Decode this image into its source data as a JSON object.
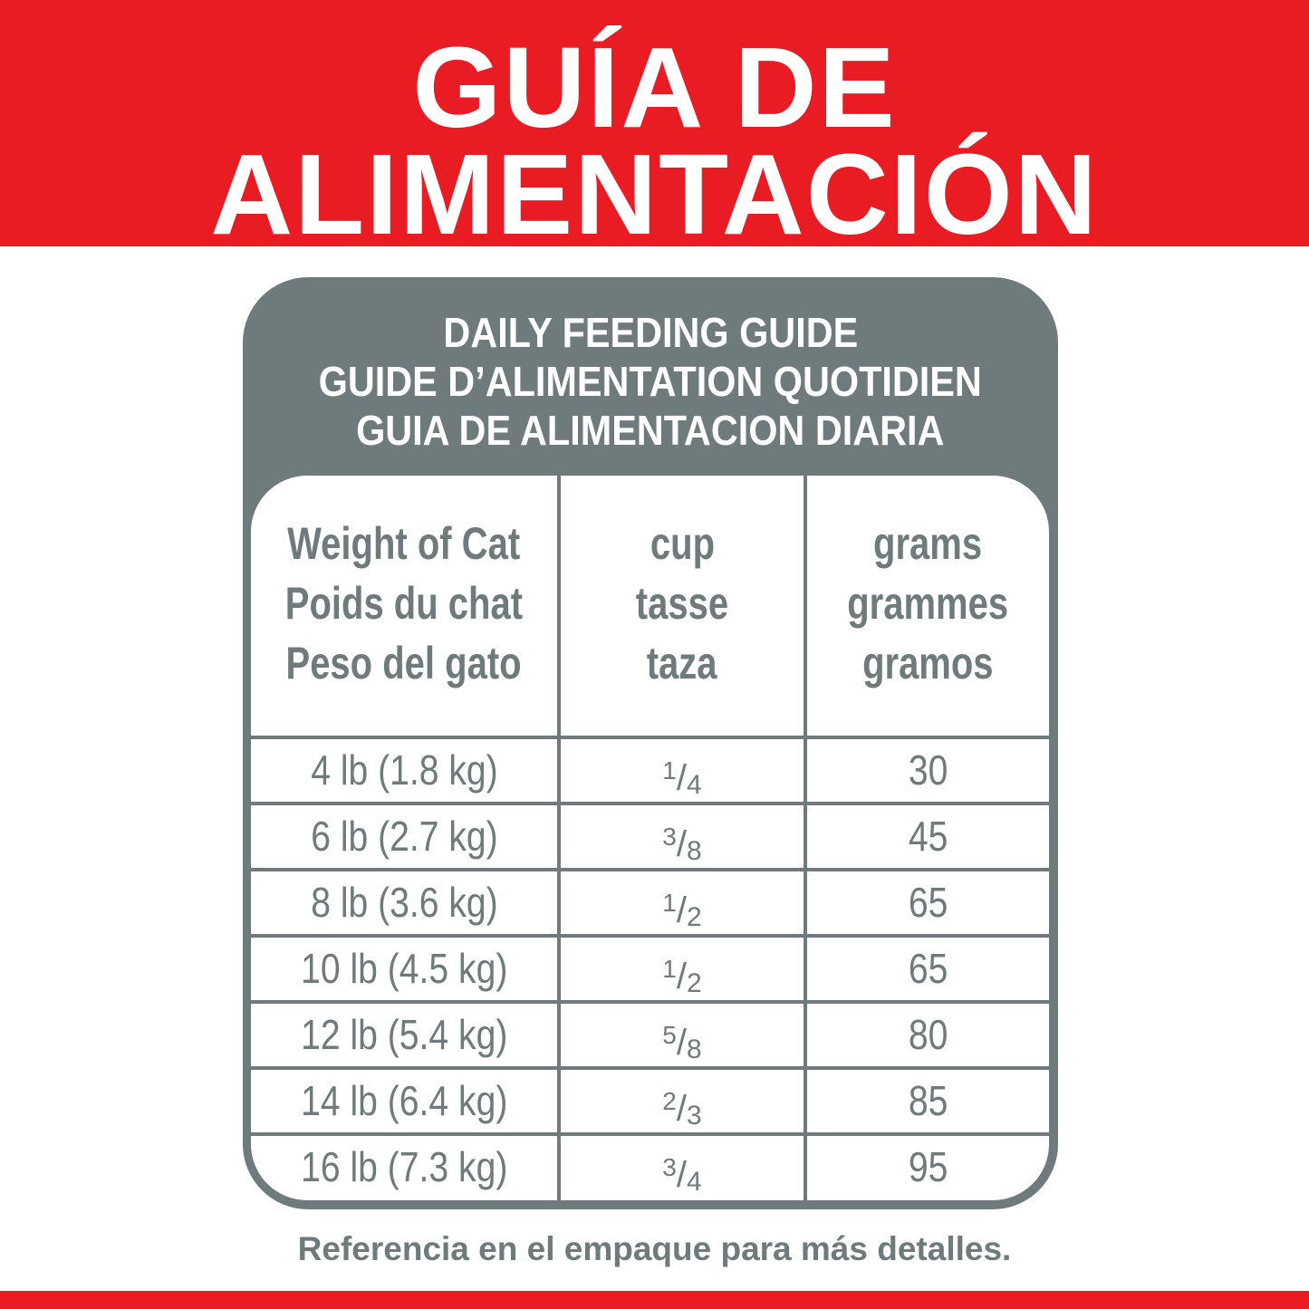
{
  "banner": {
    "line1": "GUÍA DE",
    "line2": "ALIMENTACIÓN",
    "color": "#e91c24"
  },
  "guide": {
    "titles": [
      "DAILY FEEDING GUIDE",
      "GUIDE D’ALIMENTATION QUOTIDIEN",
      "GUIA DE ALIMENTACION DIARIA"
    ],
    "color": "#6f7a7d"
  },
  "table": {
    "headers": [
      [
        "Weight of Cat",
        "Poids du chat",
        "Peso del gato"
      ],
      [
        "cup",
        "tasse",
        "taza"
      ],
      [
        "grams",
        "grammes",
        "gramos"
      ]
    ],
    "rows": [
      {
        "weight": "4 lb (1.8 kg)",
        "cup_num": "1",
        "cup_den": "4",
        "grams": "30"
      },
      {
        "weight": "6 lb (2.7 kg)",
        "cup_num": "3",
        "cup_den": "8",
        "grams": "45"
      },
      {
        "weight": "8 lb (3.6 kg)",
        "cup_num": "1",
        "cup_den": "2",
        "grams": "65"
      },
      {
        "weight": "10 lb (4.5 kg)",
        "cup_num": "1",
        "cup_den": "2",
        "grams": "65"
      },
      {
        "weight": "12 lb (5.4 kg)",
        "cup_num": "5",
        "cup_den": "8",
        "grams": "80"
      },
      {
        "weight": "14 lb (6.4 kg)",
        "cup_num": "2",
        "cup_den": "3",
        "grams": "85"
      },
      {
        "weight": "16 lb (7.3 kg)",
        "cup_num": "3",
        "cup_den": "4",
        "grams": "95"
      }
    ]
  },
  "footer": "Referencia en el empaque para más detalles."
}
